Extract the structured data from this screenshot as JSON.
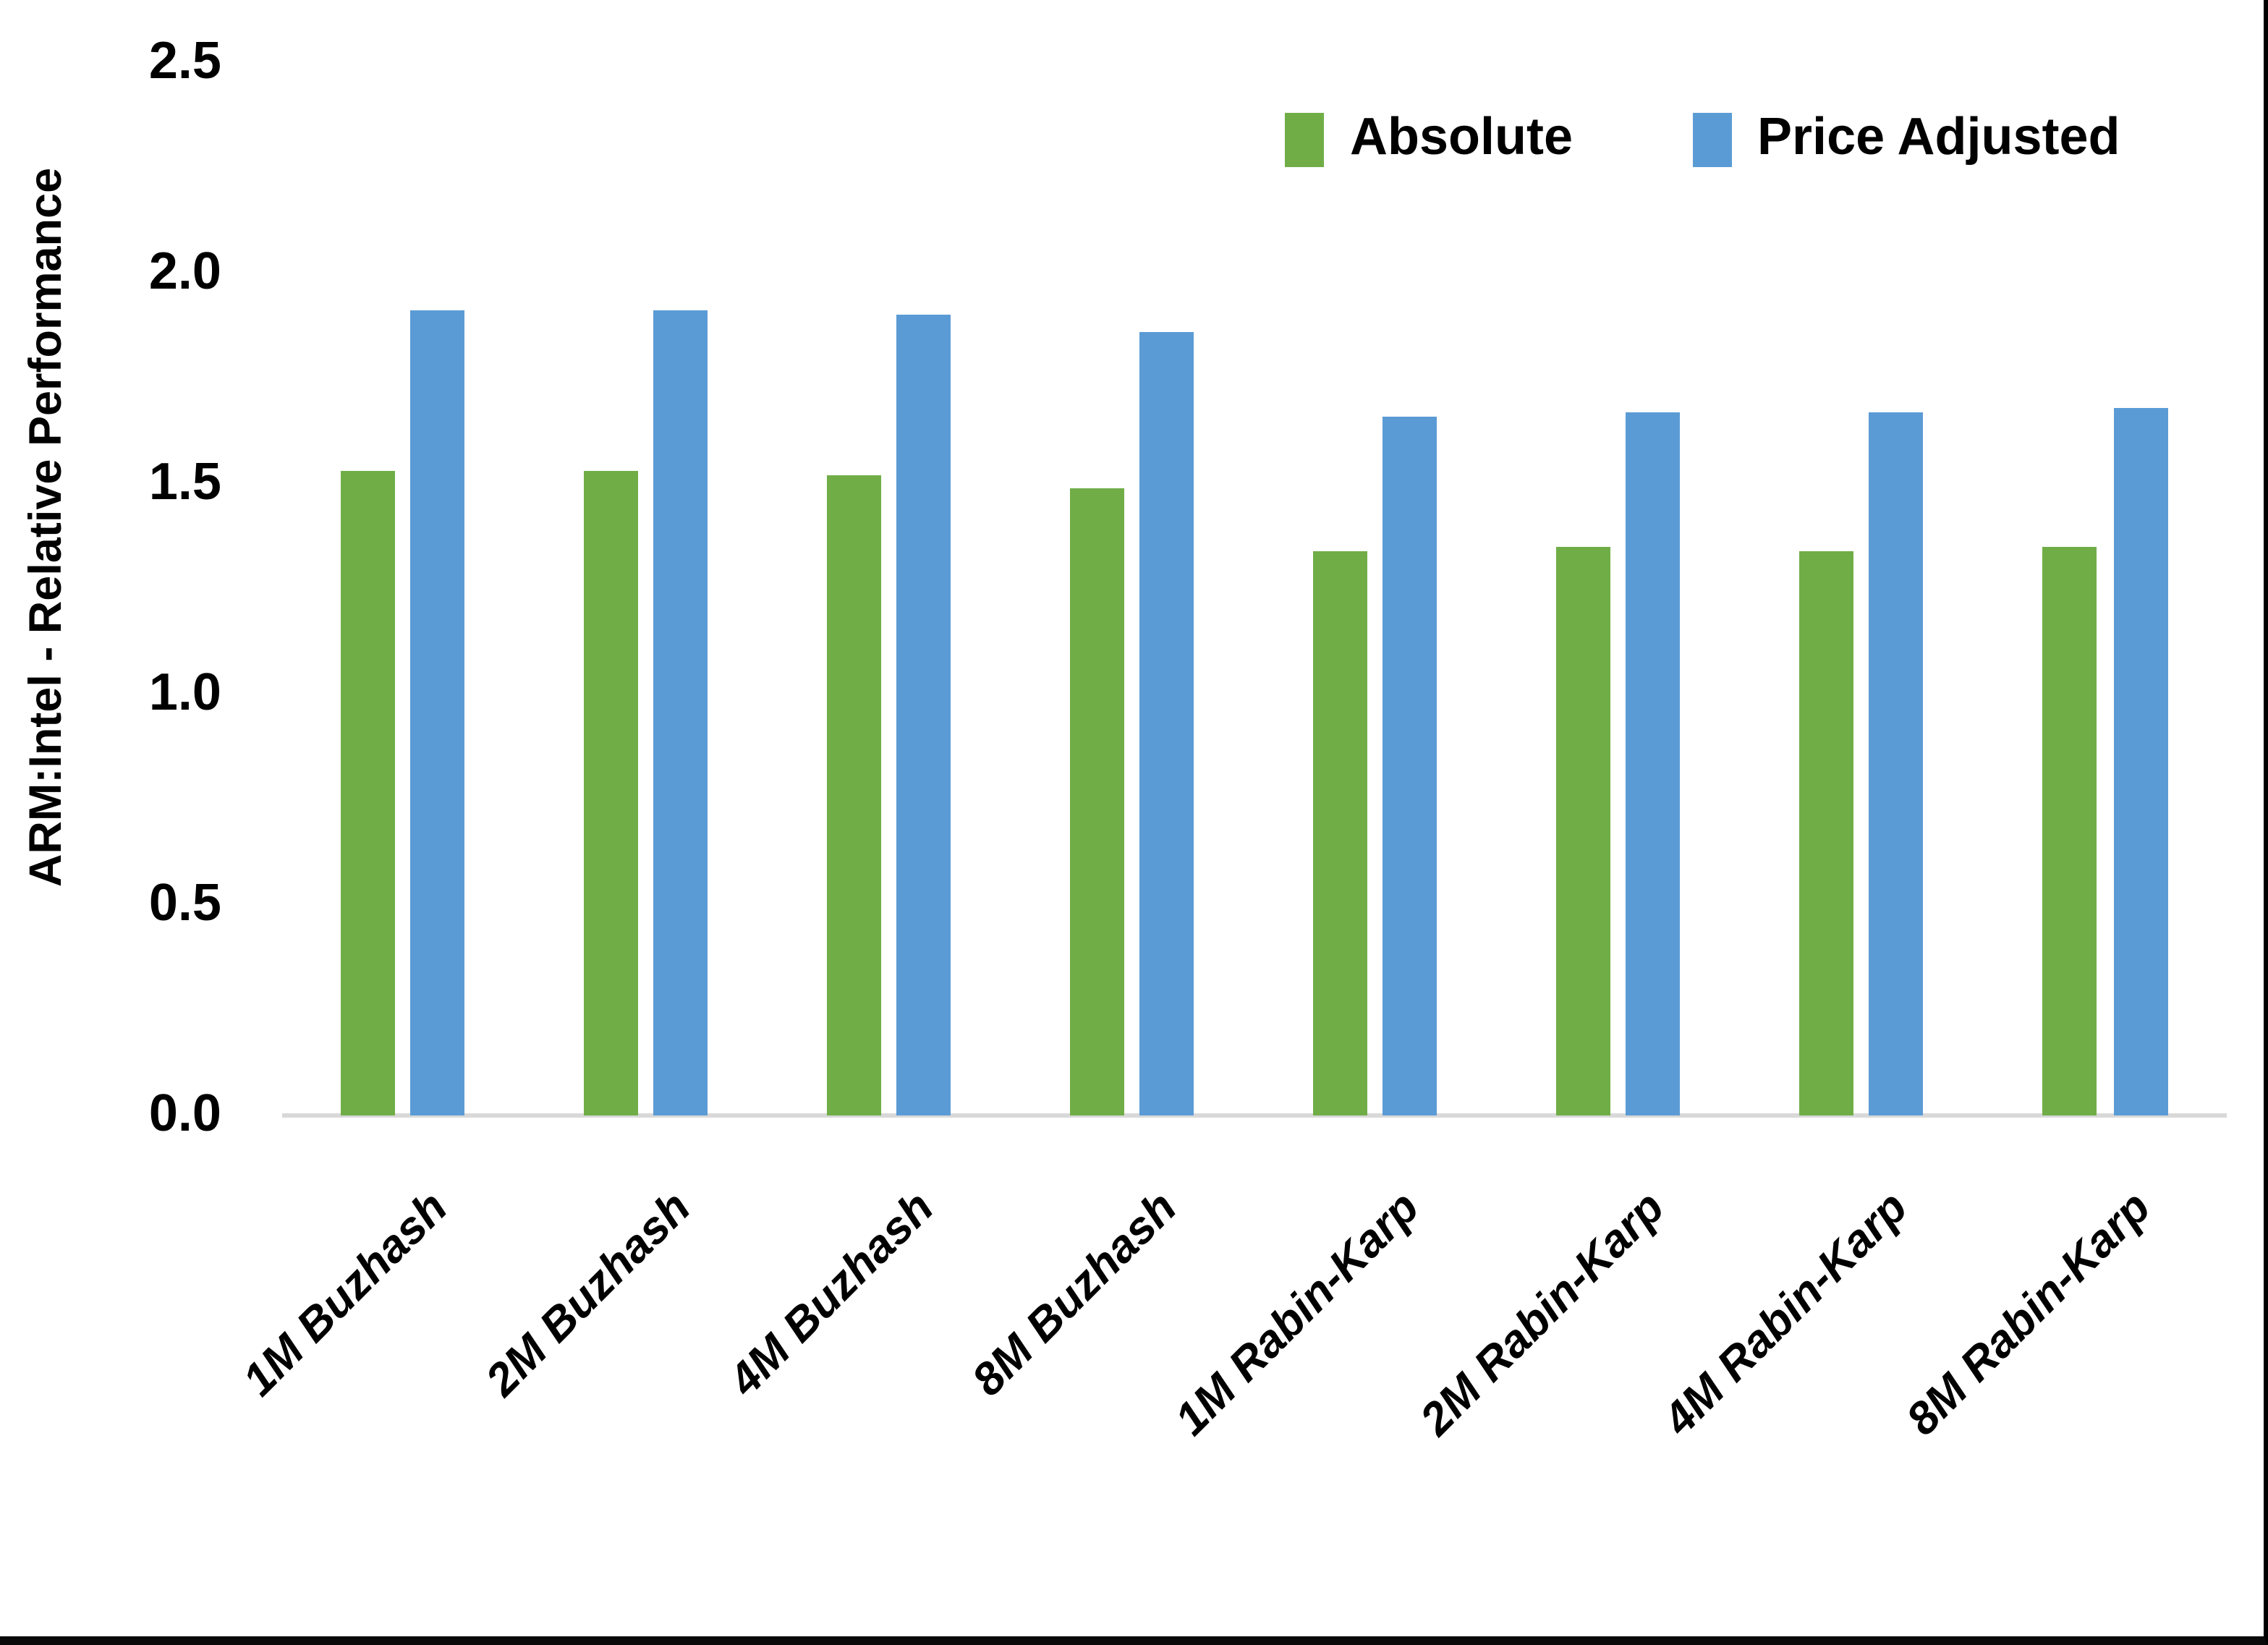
{
  "chart_data": {
    "type": "bar",
    "title": "",
    "ylabel": "ARM:Intel - Relative Performance",
    "xlabel": "",
    "categories": [
      "1M Buzhash",
      "2M Buzhash",
      "4M Buzhash",
      "8M Buzhash",
      "1M Rabin-Karp",
      "2M Rabin-Karp",
      "4M Rabin-Karp",
      "8M Rabin-Karp"
    ],
    "series": [
      {
        "name": "Absolute",
        "color": "#70AD47",
        "values": [
          1.53,
          1.53,
          1.52,
          1.49,
          1.34,
          1.35,
          1.34,
          1.35
        ]
      },
      {
        "name": "Price Adjusted",
        "color": "#5B9BD5",
        "values": [
          1.91,
          1.91,
          1.9,
          1.86,
          1.66,
          1.67,
          1.67,
          1.68
        ]
      }
    ],
    "ylim": [
      0,
      2.5
    ],
    "y_ticks": [
      "0.0",
      "0.5",
      "1.0",
      "1.5",
      "2.0",
      "2.5"
    ],
    "grid": "off",
    "legend_position": "top-right",
    "axis_line_color": "#D9D9D9",
    "text_color": "#000000",
    "background_color": "#FFFFFF"
  }
}
